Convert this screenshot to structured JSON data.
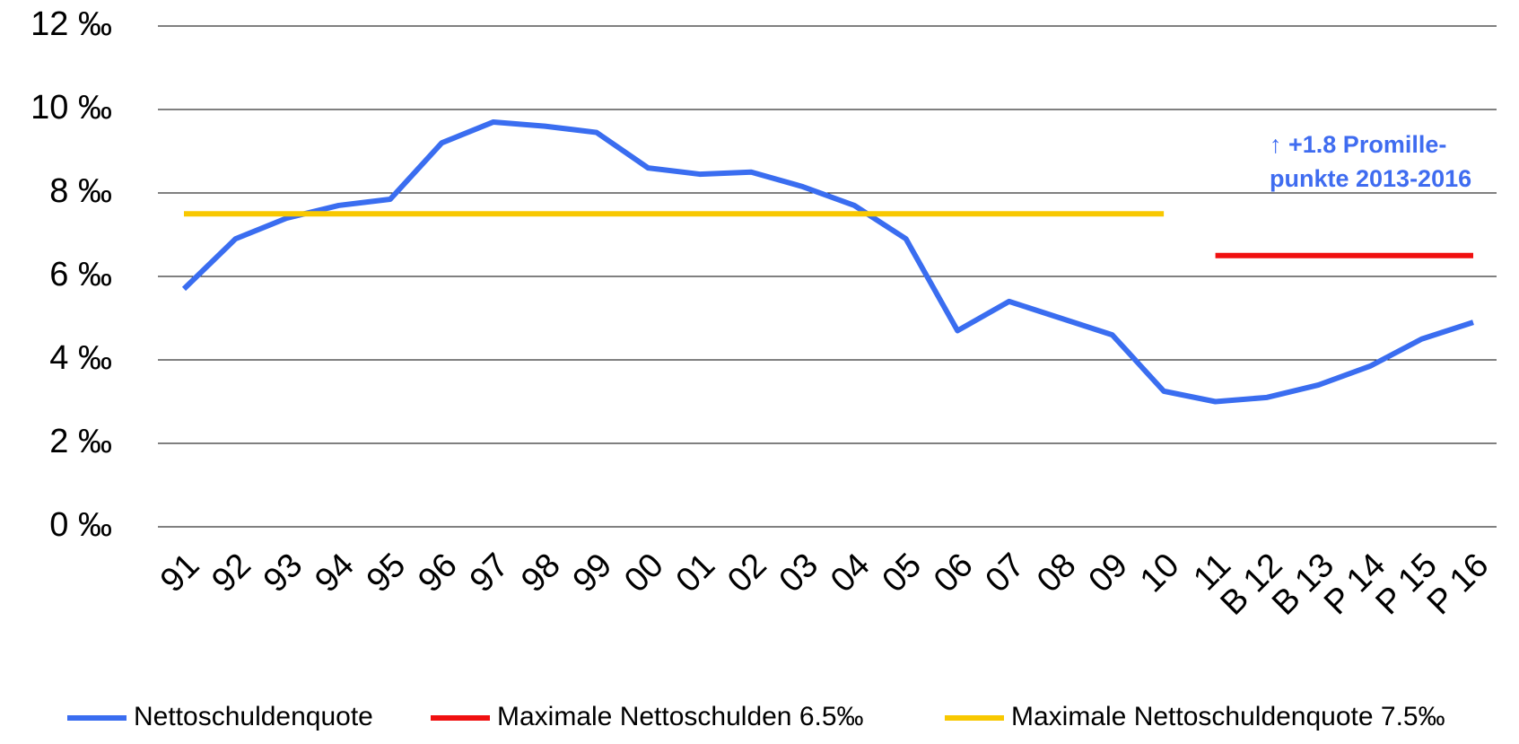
{
  "chart_data": {
    "type": "line",
    "categories": [
      "91",
      "92",
      "93",
      "94",
      "95",
      "96",
      "97",
      "98",
      "99",
      "00",
      "01",
      "02",
      "03",
      "04",
      "05",
      "06",
      "07",
      "08",
      "09",
      "10",
      "11",
      "B 12",
      "B 13",
      "P 14",
      "P 15",
      "P 16"
    ],
    "series": [
      {
        "name": "Nettoschuldenquote",
        "color": "#3a6df0",
        "values": [
          5.7,
          6.9,
          7.4,
          7.7,
          7.85,
          9.2,
          9.7,
          9.6,
          9.45,
          8.6,
          8.45,
          8.5,
          8.15,
          7.7,
          6.9,
          4.7,
          5.4,
          5.0,
          4.6,
          3.25,
          3.0,
          3.1,
          3.4,
          3.85,
          4.5,
          4.9
        ]
      },
      {
        "name": "Maximale Nettoschulden 6.5‰",
        "color": "#f01010",
        "values": [
          null,
          null,
          null,
          null,
          null,
          null,
          null,
          null,
          null,
          null,
          null,
          null,
          null,
          null,
          null,
          null,
          null,
          null,
          null,
          null,
          6.5,
          6.5,
          6.5,
          6.5,
          6.5,
          6.5
        ]
      },
      {
        "name": "Maximale Nettoschuldenquote 7.5‰",
        "color": "#f8c800",
        "values": [
          7.5,
          7.5,
          7.5,
          7.5,
          7.5,
          7.5,
          7.5,
          7.5,
          7.5,
          7.5,
          7.5,
          7.5,
          7.5,
          7.5,
          7.5,
          7.5,
          7.5,
          7.5,
          7.5,
          7.5,
          null,
          null,
          null,
          null,
          null,
          null
        ]
      }
    ],
    "ylim": [
      0,
      12
    ],
    "yticks": [
      {
        "value": 0,
        "label": "0 ‰"
      },
      {
        "value": 2,
        "label": "2 ‰"
      },
      {
        "value": 4,
        "label": "4 ‰"
      },
      {
        "value": 6,
        "label": "6 ‰"
      },
      {
        "value": 8,
        "label": "8 ‰"
      },
      {
        "value": 10,
        "label": "10 ‰"
      },
      {
        "value": 12,
        "label": "12 ‰"
      }
    ],
    "grid": true,
    "legend": "bottom",
    "annotation": [
      "↑ +1.8 Promille-",
      "punkte 2013-2016"
    ]
  }
}
